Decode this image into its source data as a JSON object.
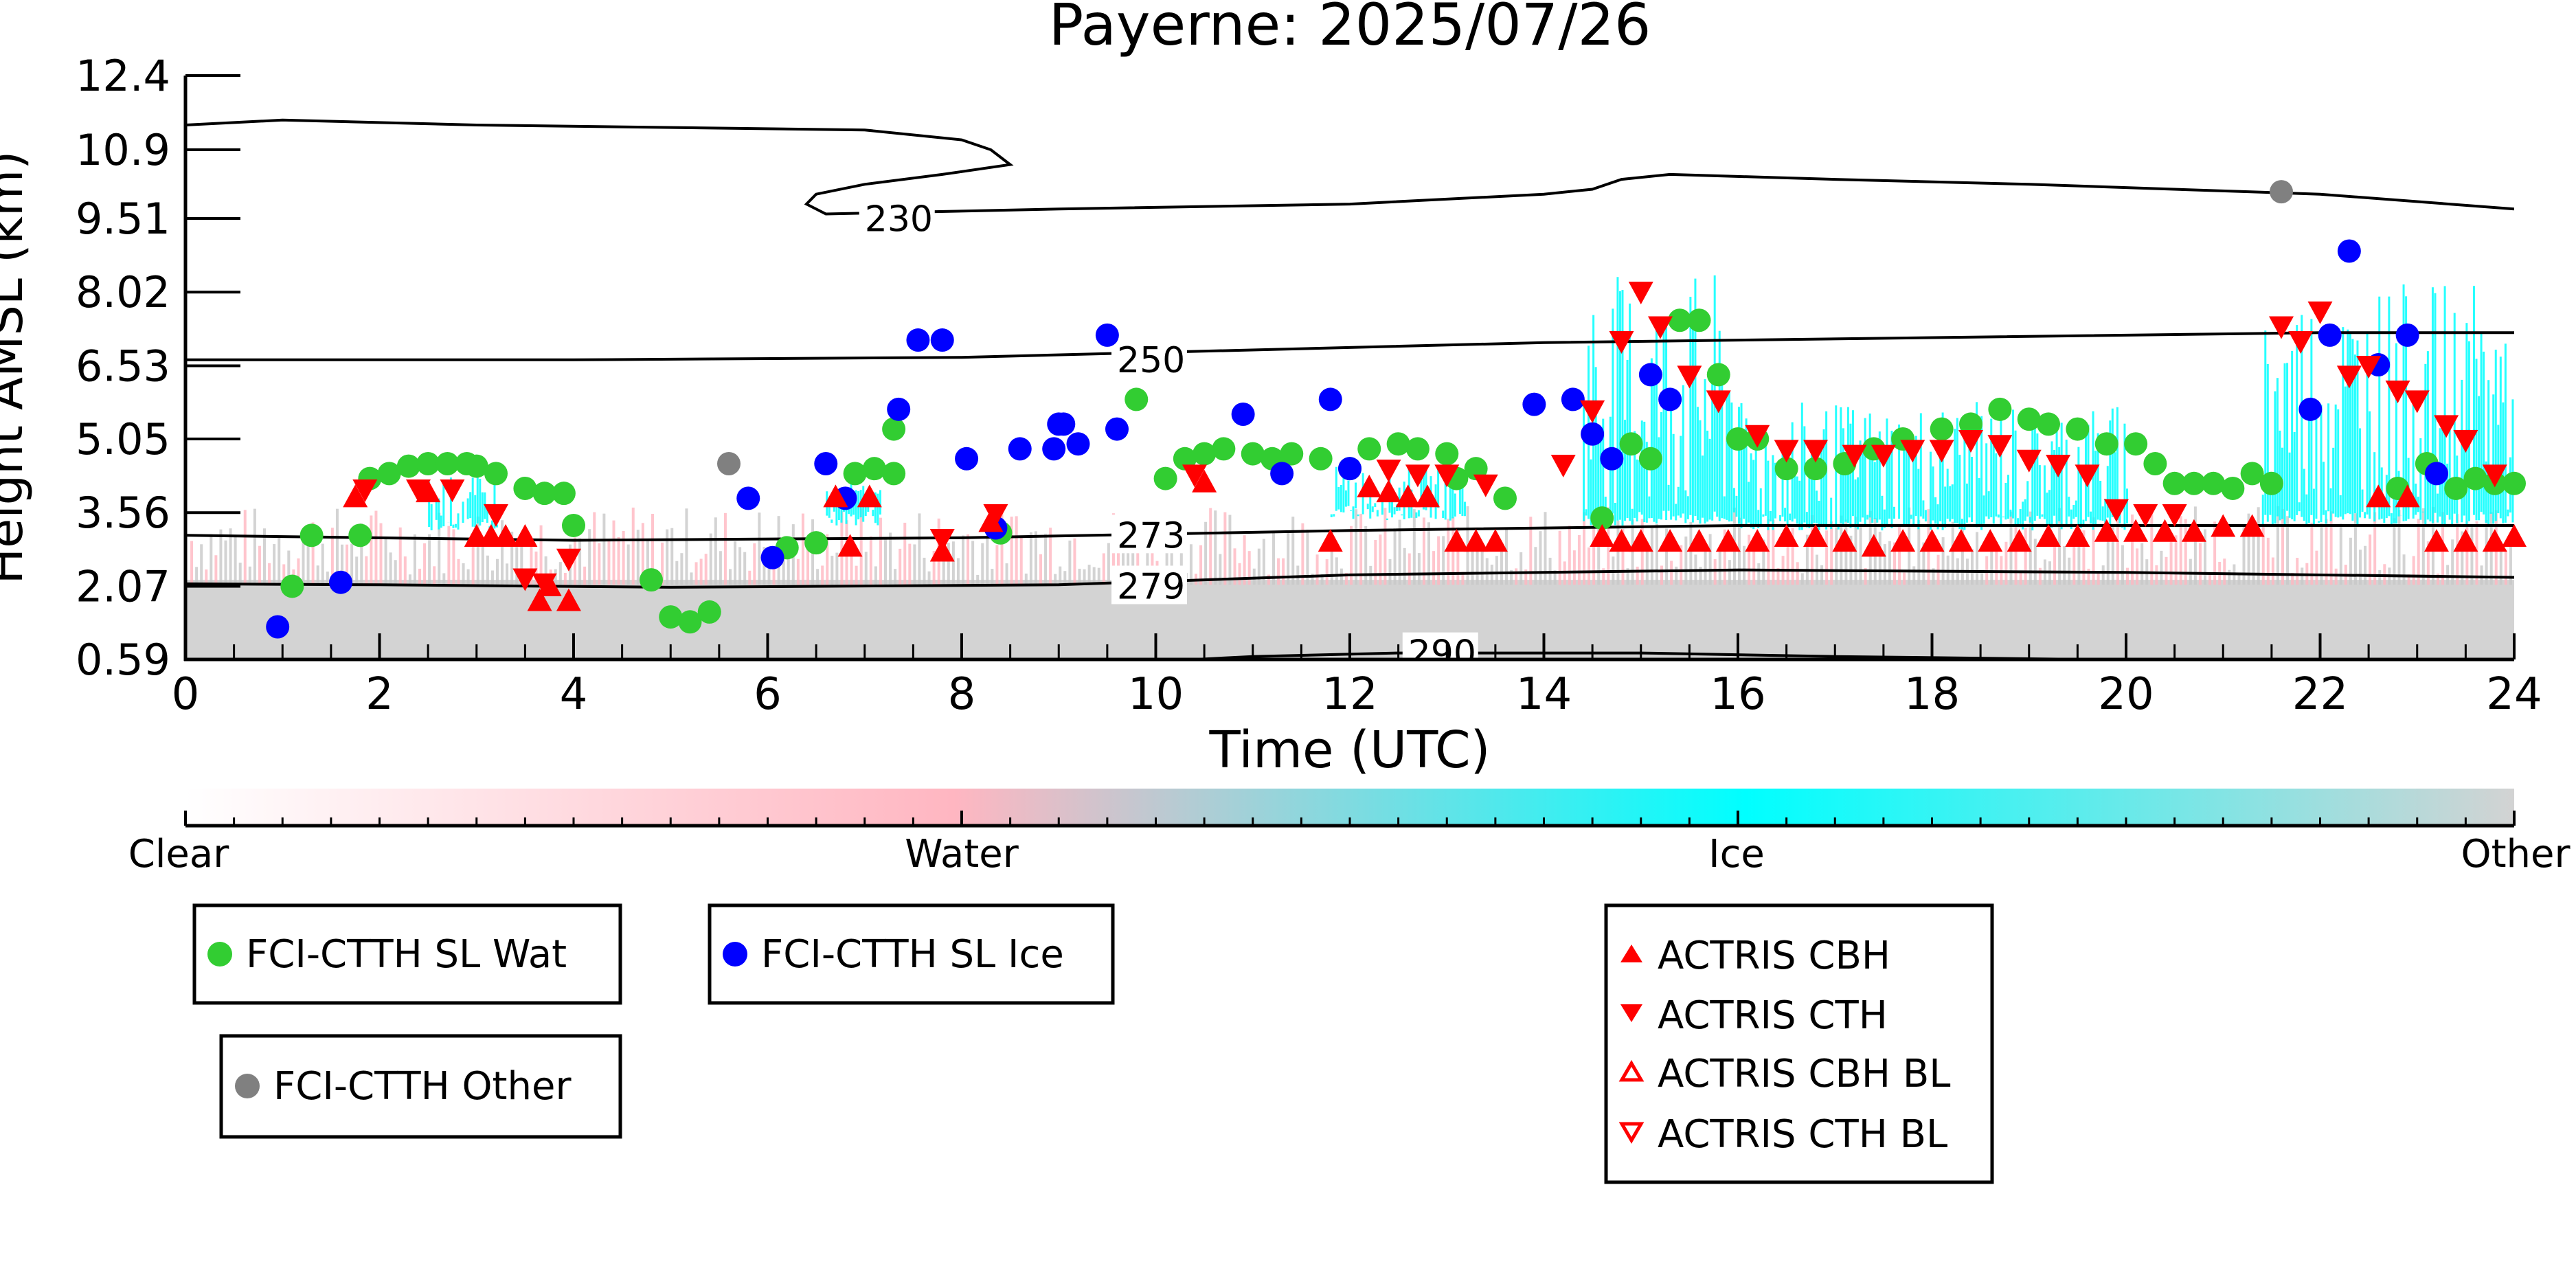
{
  "chart_data": {
    "type": "scatter",
    "title": "Payerne: 2025/07/26",
    "xlabel": "Time (UTC)",
    "ylabel": "Height AMSL (km)",
    "xlim": [
      0,
      24
    ],
    "ylim": [
      0.59,
      12.4
    ],
    "x_ticks": [
      "0",
      "2",
      "4",
      "6",
      "8",
      "10",
      "12",
      "14",
      "16",
      "18",
      "20",
      "22",
      "24"
    ],
    "y_ticks": [
      "0.59",
      "2.07",
      "3.56",
      "5.05",
      "6.53",
      "8.02",
      "9.51",
      "10.9",
      "12.4"
    ],
    "colorbar": {
      "labels": [
        "Clear",
        "Water",
        "Ice",
        "Other"
      ],
      "colors": [
        "#ffffff",
        "#ffb6c1",
        "#00ffff",
        "#d3d3d3"
      ]
    },
    "contours": [
      {
        "label": "230",
        "label_x": 7.0,
        "label_y": 9.5,
        "points": [
          [
            0,
            11.4
          ],
          [
            1,
            11.5
          ],
          [
            3,
            11.4
          ],
          [
            7,
            11.3
          ],
          [
            8,
            11.1
          ],
          [
            8.3,
            10.9
          ],
          [
            8.5,
            10.6
          ],
          [
            7.8,
            10.4
          ],
          [
            7,
            10.2
          ],
          [
            6.5,
            10.0
          ],
          [
            6.4,
            9.8
          ],
          [
            6.6,
            9.6
          ],
          [
            9,
            9.7
          ],
          [
            12,
            9.8
          ],
          [
            14,
            10.0
          ],
          [
            14.5,
            10.1
          ],
          [
            14.8,
            10.3
          ],
          [
            15.3,
            10.4
          ],
          [
            17,
            10.3
          ],
          [
            19,
            10.2
          ],
          [
            22,
            10.0
          ],
          [
            24,
            9.7
          ]
        ]
      },
      {
        "label": "250",
        "label_x": 9.6,
        "label_y": 6.65,
        "points": [
          [
            0,
            6.65
          ],
          [
            4,
            6.65
          ],
          [
            8,
            6.7
          ],
          [
            10,
            6.8
          ],
          [
            14,
            7.0
          ],
          [
            18,
            7.1
          ],
          [
            22,
            7.2
          ],
          [
            24,
            7.2
          ]
        ]
      },
      {
        "label": "273",
        "label_x": 9.6,
        "label_y": 3.1,
        "points": [
          [
            0,
            3.1
          ],
          [
            4,
            3.0
          ],
          [
            8,
            3.05
          ],
          [
            12,
            3.2
          ],
          [
            16,
            3.3
          ],
          [
            20,
            3.3
          ],
          [
            24,
            3.3
          ]
        ]
      },
      {
        "label": "279",
        "label_x": 9.6,
        "label_y": 2.07,
        "points": [
          [
            0,
            2.12
          ],
          [
            2,
            2.1
          ],
          [
            5,
            2.05
          ],
          [
            9,
            2.1
          ],
          [
            12,
            2.3
          ],
          [
            16,
            2.4
          ],
          [
            20,
            2.35
          ],
          [
            24,
            2.25
          ]
        ]
      },
      {
        "label": "290",
        "label_x": 12.6,
        "label_y": 0.72,
        "points": [
          [
            10,
            0.55
          ],
          [
            11,
            0.65
          ],
          [
            12.5,
            0.72
          ],
          [
            15,
            0.72
          ],
          [
            17,
            0.65
          ],
          [
            20,
            0.58
          ]
        ]
      }
    ],
    "series": [
      {
        "name": "FCI-CTTH SL Wat",
        "color": "#32cd32",
        "marker": "circle",
        "x": [
          1.1,
          1.3,
          1.8,
          1.9,
          2.1,
          2.3,
          2.5,
          2.7,
          2.9,
          3.0,
          3.2,
          3.5,
          3.7,
          3.9,
          4.0,
          4.8,
          5.0,
          5.2,
          5.4,
          6.2,
          6.5,
          6.9,
          7.1,
          7.3,
          7.3,
          8.4,
          9.8,
          10.1,
          10.3,
          10.5,
          10.7,
          11.0,
          11.2,
          11.4,
          11.7,
          12.0,
          12.2,
          12.5,
          12.7,
          13.0,
          13.1,
          13.3,
          13.6,
          14.6,
          14.9,
          15.1,
          15.4,
          15.6,
          15.8,
          16.0,
          16.2,
          16.5,
          16.8,
          17.1,
          17.4,
          17.7,
          18.1,
          18.4,
          18.7,
          19.0,
          19.2,
          19.5,
          19.8,
          20.1,
          20.3,
          20.5,
          20.7,
          20.9,
          21.1,
          21.3,
          21.5,
          22.8,
          23.1,
          23.4,
          23.6,
          23.8,
          24.0
        ],
        "y": [
          2.07,
          3.1,
          3.1,
          4.25,
          4.35,
          4.5,
          4.55,
          4.55,
          4.55,
          4.5,
          4.35,
          4.05,
          3.95,
          3.95,
          3.3,
          2.2,
          1.45,
          1.35,
          1.55,
          2.85,
          2.95,
          4.35,
          4.45,
          4.35,
          5.25,
          3.15,
          5.85,
          4.25,
          4.65,
          4.75,
          4.85,
          4.75,
          4.65,
          4.75,
          4.65,
          4.45,
          4.85,
          4.95,
          4.85,
          4.75,
          4.25,
          4.45,
          3.85,
          3.45,
          4.95,
          4.65,
          7.45,
          7.45,
          6.35,
          5.05,
          5.05,
          4.45,
          4.45,
          4.55,
          4.85,
          5.05,
          5.25,
          5.35,
          5.65,
          5.45,
          5.35,
          5.25,
          4.95,
          4.95,
          4.55,
          4.15,
          4.15,
          4.15,
          4.05,
          4.35,
          4.15,
          4.05,
          4.55,
          4.05,
          4.25,
          4.15,
          4.15
        ]
      },
      {
        "name": "FCI-CTTH SL Ice",
        "color": "#0000ff",
        "marker": "circle",
        "x": [
          0.95,
          1.6,
          5.8,
          6.05,
          6.6,
          6.8,
          7.35,
          7.55,
          7.8,
          8.05,
          8.35,
          8.6,
          8.95,
          9.0,
          9.05,
          9.2,
          9.5,
          9.6,
          10.9,
          11.3,
          11.8,
          12.0,
          13.9,
          14.3,
          14.5,
          14.7,
          15.1,
          15.3,
          21.9,
          22.1,
          22.3,
          22.6,
          22.9,
          23.2
        ],
        "y": [
          1.25,
          2.15,
          3.85,
          2.65,
          4.55,
          3.85,
          5.65,
          7.05,
          7.05,
          4.65,
          3.25,
          4.85,
          4.85,
          5.35,
          5.35,
          4.95,
          7.15,
          5.25,
          5.55,
          4.35,
          5.85,
          4.45,
          5.75,
          5.85,
          5.15,
          4.65,
          6.35,
          5.85,
          5.65,
          7.15,
          8.85,
          6.55,
          7.15,
          4.35
        ]
      },
      {
        "name": "FCI-CTTH Other",
        "color": "#808080",
        "marker": "circle",
        "x": [
          5.6,
          21.6
        ],
        "y": [
          4.55,
          10.05
        ]
      },
      {
        "name": "ACTRIS CBH",
        "color": "#ff0000",
        "marker": "triangle-up",
        "x": [
          1.75,
          2.5,
          3.0,
          3.15,
          3.3,
          3.5,
          3.65,
          3.75,
          3.95,
          6.7,
          6.85,
          7.05,
          7.8,
          8.3,
          10.5,
          11.8,
          12.2,
          12.4,
          12.6,
          12.8,
          13.1,
          13.3,
          13.5,
          14.6,
          14.8,
          15.0,
          15.3,
          15.6,
          15.9,
          16.2,
          16.5,
          16.8,
          17.1,
          17.4,
          17.7,
          18.0,
          18.3,
          18.6,
          18.9,
          19.2,
          19.5,
          19.8,
          20.1,
          20.4,
          20.7,
          21.0,
          21.3,
          22.6,
          22.9,
          23.2,
          23.5,
          23.8,
          24.0
        ],
        "y": [
          3.85,
          3.95,
          3.05,
          3.05,
          3.05,
          3.05,
          1.75,
          2.05,
          1.75,
          3.85,
          2.85,
          3.85,
          2.75,
          3.35,
          4.15,
          2.95,
          4.05,
          3.95,
          3.85,
          3.85,
          2.95,
          2.95,
          2.95,
          3.05,
          2.95,
          2.95,
          2.95,
          2.95,
          2.95,
          2.95,
          3.05,
          3.05,
          2.95,
          2.85,
          2.95,
          2.95,
          2.95,
          2.95,
          2.95,
          3.05,
          3.05,
          3.15,
          3.15,
          3.15,
          3.15,
          3.25,
          3.25,
          3.85,
          3.85,
          2.95,
          2.95,
          2.95,
          3.05
        ]
      },
      {
        "name": "ACTRIS CTH",
        "color": "#ff0000",
        "marker": "triangle-down",
        "x": [
          1.85,
          2.4,
          2.75,
          3.2,
          3.5,
          3.7,
          3.95,
          7.8,
          8.35,
          10.4,
          12.4,
          12.7,
          13.0,
          13.4,
          14.2,
          14.5,
          14.8,
          15.0,
          15.2,
          15.5,
          15.8,
          16.2,
          16.5,
          16.8,
          17.2,
          17.5,
          17.8,
          18.1,
          18.4,
          18.7,
          19.0,
          19.3,
          19.6,
          19.9,
          20.2,
          20.5,
          21.6,
          21.8,
          22.0,
          22.3,
          22.5,
          22.8,
          23.0,
          23.3,
          23.5,
          23.8
        ],
        "y": [
          4.05,
          4.05,
          4.05,
          3.55,
          2.25,
          2.15,
          2.65,
          3.05,
          3.55,
          4.35,
          4.45,
          4.35,
          4.35,
          4.15,
          4.55,
          5.65,
          7.05,
          8.05,
          7.35,
          6.35,
          5.85,
          5.15,
          4.85,
          4.85,
          4.75,
          4.75,
          4.85,
          4.85,
          5.05,
          4.95,
          4.65,
          4.55,
          4.35,
          3.65,
          3.55,
          3.55,
          7.35,
          7.05,
          7.65,
          6.35,
          6.55,
          6.05,
          5.85,
          5.35,
          5.05,
          4.35
        ]
      },
      {
        "name": "ACTRIS CBH BL",
        "color": "#ff0000",
        "marker": "triangle-up-open",
        "x": [],
        "y": []
      },
      {
        "name": "ACTRIS CTH BL",
        "color": "#ff0000",
        "marker": "triangle-down-open",
        "x": [],
        "y": []
      }
    ],
    "legend_placement": "bottom",
    "grid": false
  }
}
